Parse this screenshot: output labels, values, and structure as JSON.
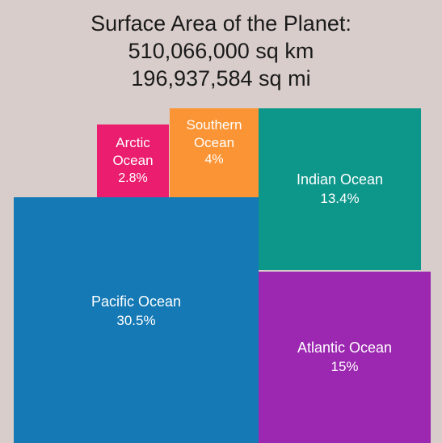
{
  "title": {
    "line1": "Surface Area of the Planet:",
    "line2": "510,066,000 sq km",
    "line3": "196,937,584 sq mi"
  },
  "chart_data": {
    "type": "treemap",
    "title": "Surface Area of the Planet:",
    "series": [
      {
        "key": "pacific",
        "label_lines": [
          "Pacific Ocean"
        ],
        "percent_label": "30.5%",
        "value": 30.5,
        "color": "#1479b5"
      },
      {
        "key": "indian",
        "label_lines": [
          "Indian Ocean"
        ],
        "percent_label": "13.4%",
        "value": 13.4,
        "color": "#0d968a"
      },
      {
        "key": "atlantic",
        "label_lines": [
          "Atlantic Ocean"
        ],
        "percent_label": "15%",
        "value": 15,
        "color": "#9c27b0"
      },
      {
        "key": "arctic",
        "label_lines": [
          "Arctic",
          "Ocean"
        ],
        "percent_label": "2.8%",
        "value": 2.8,
        "color": "#ea1d6e"
      },
      {
        "key": "southern",
        "label_lines": [
          "Southern",
          "Ocean"
        ],
        "percent_label": "4%",
        "value": 4,
        "color": "#fb9434"
      }
    ]
  }
}
